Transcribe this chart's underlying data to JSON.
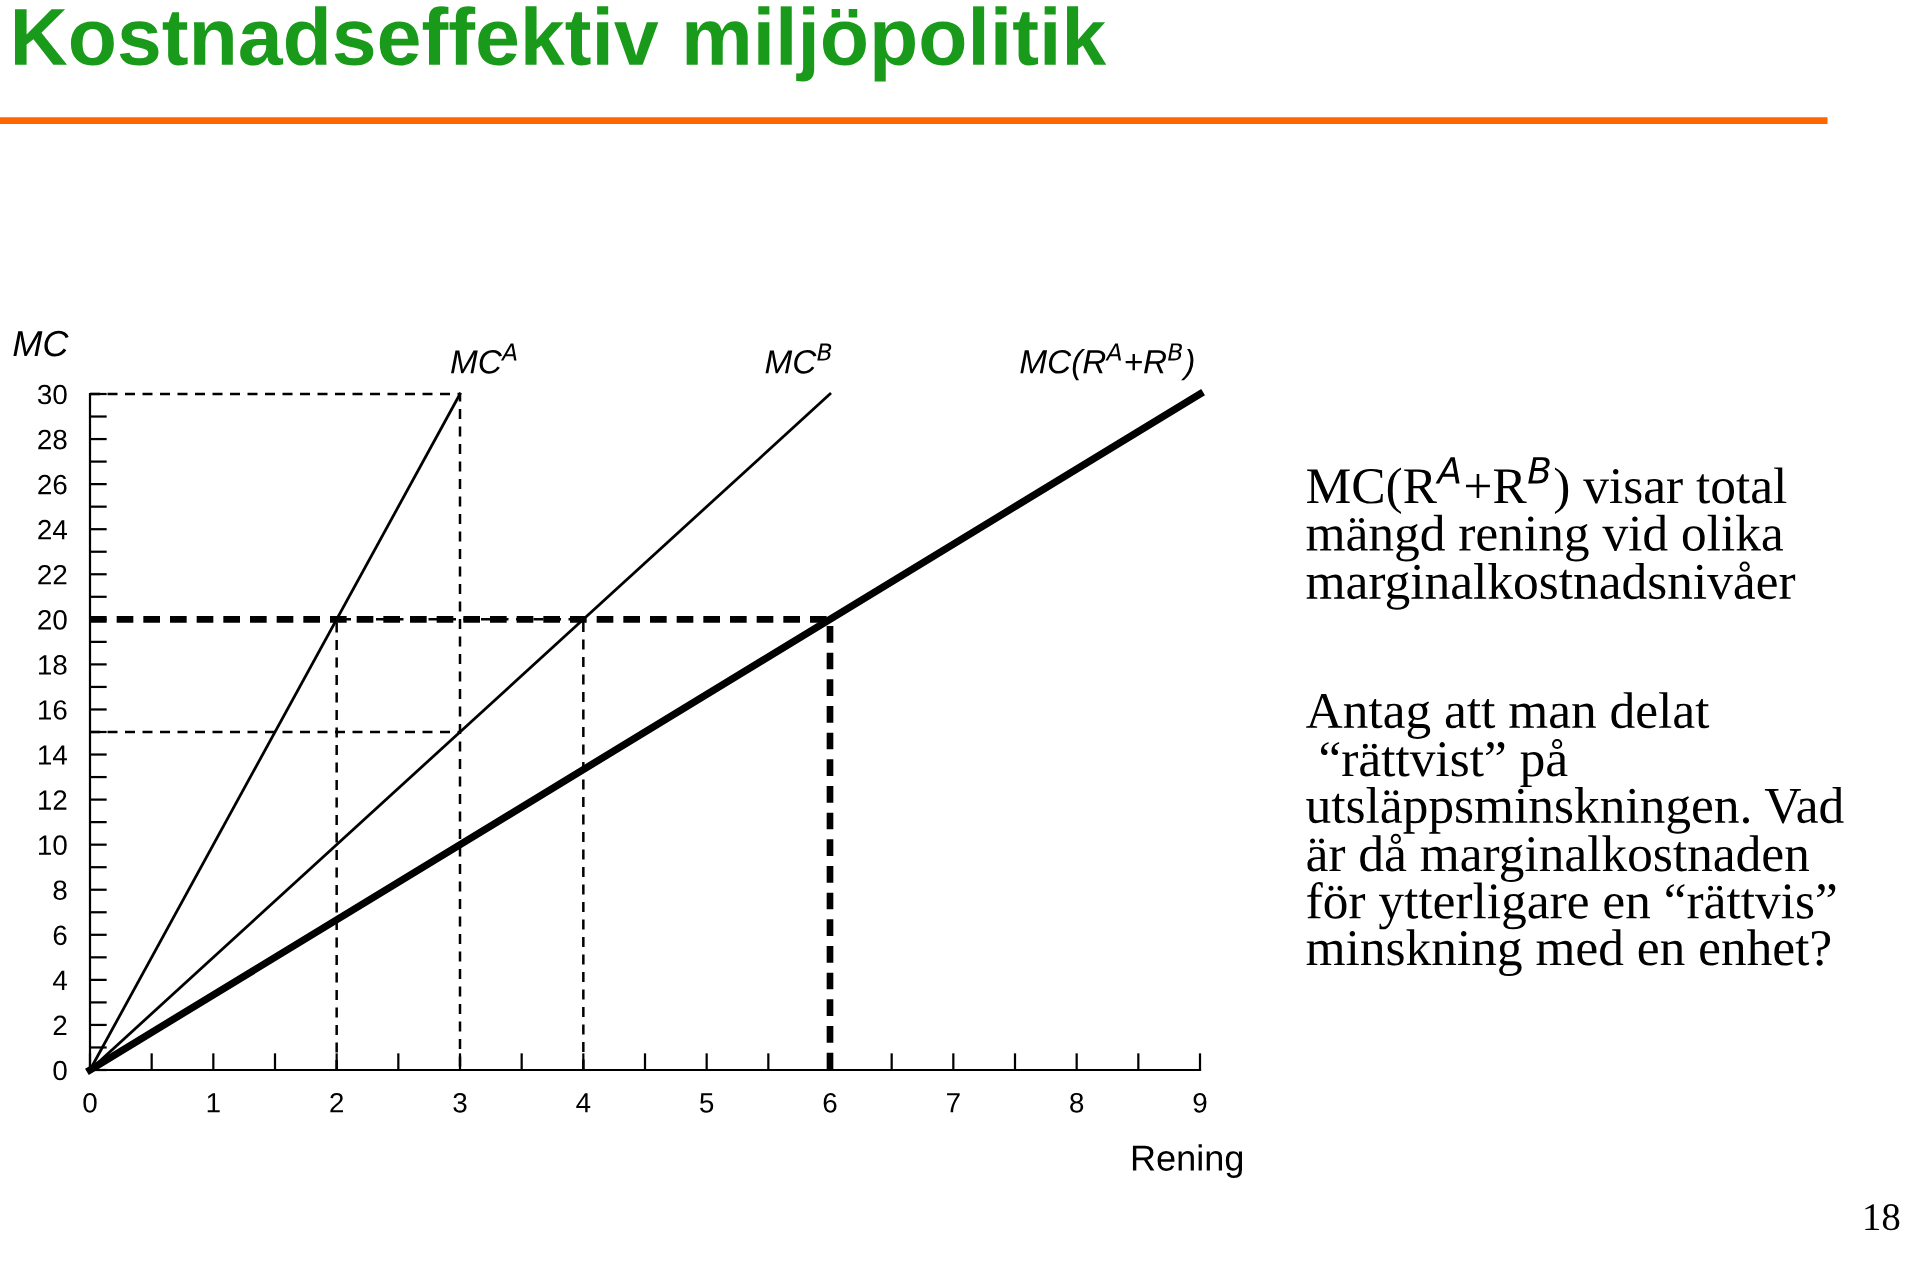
{
  "chart_data": {
    "type": "line",
    "title": "Kostnadseffektiv miljöpolitik",
    "xlabel": "Rening",
    "ylabel": "MC",
    "xlim": [
      0,
      9
    ],
    "ylim": [
      0,
      30
    ],
    "xticks": [
      0,
      {
        "value": 0.5,
        "label": null
      },
      1,
      {
        "value": 1.5,
        "label": null
      },
      2,
      {
        "value": 2.5,
        "label": null
      },
      3,
      {
        "value": 3.5,
        "label": null
      },
      4,
      {
        "value": 4.5,
        "label": null
      },
      5,
      {
        "value": 5.5,
        "label": null
      },
      6,
      {
        "value": 6.5,
        "label": null
      },
      7,
      {
        "value": 7.5,
        "label": null
      },
      8,
      {
        "value": 8.5,
        "label": null
      },
      9
    ],
    "yticks": [
      0,
      {
        "value": 1,
        "label": null
      },
      2,
      {
        "value": 3,
        "label": null
      },
      4,
      {
        "value": 5,
        "label": null
      },
      6,
      {
        "value": 7,
        "label": null
      },
      8,
      {
        "value": 9,
        "label": null
      },
      10,
      {
        "value": 11,
        "label": null
      },
      12,
      {
        "value": 13,
        "label": null
      },
      14,
      {
        "value": 15,
        "label": null
      },
      16,
      {
        "value": 17,
        "label": null
      },
      18,
      {
        "value": 19,
        "label": null
      },
      20,
      {
        "value": 21,
        "label": null
      },
      22,
      {
        "value": 23,
        "label": null
      },
      24,
      {
        "value": 25,
        "label": null
      },
      26,
      {
        "value": 27,
        "label": null
      },
      28,
      {
        "value": 29,
        "label": null
      },
      30
    ],
    "grid": false,
    "legend": false,
    "marker": "none",
    "series": [
      {
        "name": "MC$^{A}$",
        "color": "#000000",
        "x": [
          0,
          3
        ],
        "values": [
          0,
          30
        ],
        "line_style": "solid"
      },
      {
        "name": "MC$^{B}$",
        "color": "#000000",
        "x": [
          0,
          6
        ],
        "values": [
          0,
          30
        ],
        "line_style": "solid"
      },
      {
        "name": "MC(R$^{A}$+R$^{B}$)",
        "color": "#000000",
        "x": [
          0,
          9
        ],
        "values": [
          0,
          30
        ],
        "line_style": "solid"
      },
      {
        "color": "#000000",
        "x": [
          0,
          3,
          3
        ],
        "values": [
          30,
          30,
          0
        ],
        "line_style": "dashed"
      },
      {
        "color": "#000000",
        "x": [
          0,
          3
        ],
        "values": [
          15,
          15
        ],
        "line_style": "dashed"
      },
      {
        "color": "#000000",
        "x": [
          2,
          2,
          4,
          4
        ],
        "values": [
          0,
          20,
          20,
          0
        ],
        "line_style": "dashed"
      },
      {
        "color": "#000000",
        "x": [
          0,
          6,
          6
        ],
        "values": [
          20,
          20,
          0
        ],
        "line_style": "dotted"
      }
    ],
    "annotations": [
      "MC(R$^{A}$+R$^{B}$) visar total\nmängd rening vid olika\nmarginalkostnadsnivåer",
      "Antag att man delat\n “rättvist” på\nutsläppsminskningen. Vad\när då marginalkostnaden\nför ytterligare en “rättvis”\nminskning med en enhet?",
      "18"
    ]
  }
}
